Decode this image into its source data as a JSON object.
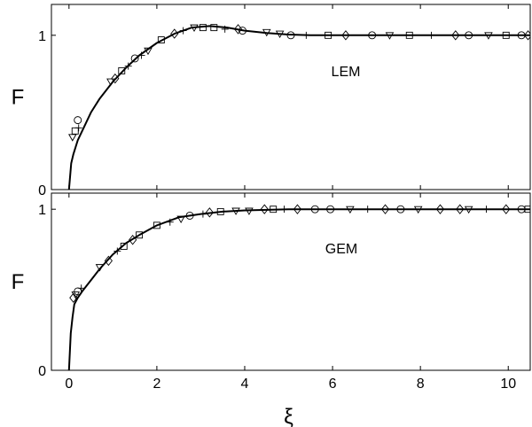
{
  "chart_data": [
    {
      "type": "scatter",
      "panel_label": "LEM",
      "ylabel": "F",
      "xlim": [
        -0.4,
        10.5
      ],
      "ylim": [
        0,
        1.2
      ],
      "y_ticks": [
        0,
        1
      ],
      "y_tick_labels": [
        "0",
        "1"
      ],
      "x_ticks": [
        0,
        2,
        4,
        6,
        8,
        10
      ],
      "grid": false,
      "curve": {
        "x": [
          0,
          0.05,
          0.1,
          0.2,
          0.3,
          0.5,
          0.7,
          1.0,
          1.3,
          1.6,
          2.0,
          2.4,
          2.8,
          3.2,
          3.6,
          4.0,
          4.5,
          5.0,
          5.5,
          6.0,
          7.0,
          8.0,
          9.0,
          10.0,
          10.5
        ],
        "y": [
          0,
          0.17,
          0.23,
          0.32,
          0.38,
          0.5,
          0.59,
          0.7,
          0.79,
          0.87,
          0.95,
          1.01,
          1.05,
          1.06,
          1.05,
          1.03,
          1.015,
          1.005,
          1.0,
          1.0,
          1.0,
          1.0,
          1.0,
          1.0,
          1.0
        ]
      },
      "markers": [
        {
          "x": 0.08,
          "y": 0.34,
          "shape": "triangle-down"
        },
        {
          "x": 0.14,
          "y": 0.38,
          "shape": "square"
        },
        {
          "x": 0.2,
          "y": 0.45,
          "shape": "circle"
        },
        {
          "x": 0.22,
          "y": 0.4,
          "shape": "plus"
        },
        {
          "x": 0.95,
          "y": 0.7,
          "shape": "triangle-down"
        },
        {
          "x": 1.05,
          "y": 0.72,
          "shape": "diamond"
        },
        {
          "x": 1.2,
          "y": 0.77,
          "shape": "square"
        },
        {
          "x": 1.35,
          "y": 0.8,
          "shape": "plus"
        },
        {
          "x": 1.5,
          "y": 0.85,
          "shape": "circle"
        },
        {
          "x": 1.65,
          "y": 0.87,
          "shape": "plus"
        },
        {
          "x": 1.8,
          "y": 0.9,
          "shape": "triangle-down"
        },
        {
          "x": 2.1,
          "y": 0.97,
          "shape": "square"
        },
        {
          "x": 2.4,
          "y": 1.01,
          "shape": "diamond"
        },
        {
          "x": 2.6,
          "y": 1.03,
          "shape": "plus"
        },
        {
          "x": 2.85,
          "y": 1.05,
          "shape": "triangle-down"
        },
        {
          "x": 3.05,
          "y": 1.05,
          "shape": "square"
        },
        {
          "x": 3.3,
          "y": 1.05,
          "shape": "square"
        },
        {
          "x": 3.55,
          "y": 1.04,
          "shape": "plus"
        },
        {
          "x": 3.85,
          "y": 1.04,
          "shape": "diamond"
        },
        {
          "x": 3.95,
          "y": 1.03,
          "shape": "circle"
        },
        {
          "x": 4.5,
          "y": 1.02,
          "shape": "triangle-down"
        },
        {
          "x": 4.8,
          "y": 1.01,
          "shape": "triangle-down"
        },
        {
          "x": 5.05,
          "y": 1.0,
          "shape": "circle"
        },
        {
          "x": 5.4,
          "y": 1.0,
          "shape": "plus"
        },
        {
          "x": 5.9,
          "y": 1.0,
          "shape": "square"
        },
        {
          "x": 6.3,
          "y": 1.0,
          "shape": "diamond"
        },
        {
          "x": 6.9,
          "y": 1.0,
          "shape": "circle"
        },
        {
          "x": 7.3,
          "y": 1.0,
          "shape": "triangle-down"
        },
        {
          "x": 7.75,
          "y": 1.0,
          "shape": "square"
        },
        {
          "x": 8.25,
          "y": 1.0,
          "shape": "plus"
        },
        {
          "x": 8.8,
          "y": 1.0,
          "shape": "diamond"
        },
        {
          "x": 9.1,
          "y": 1.0,
          "shape": "circle"
        },
        {
          "x": 9.55,
          "y": 1.0,
          "shape": "triangle-down"
        },
        {
          "x": 9.95,
          "y": 1.0,
          "shape": "square"
        },
        {
          "x": 10.3,
          "y": 1.0,
          "shape": "circle"
        },
        {
          "x": 10.45,
          "y": 1.0,
          "shape": "diamond"
        }
      ]
    },
    {
      "type": "scatter",
      "panel_label": "GEM",
      "xlabel": "ξ",
      "ylabel": "F",
      "xlim": [
        -0.4,
        10.5
      ],
      "ylim": [
        0,
        1.1
      ],
      "y_ticks": [
        0,
        1
      ],
      "y_tick_labels": [
        "0",
        "1"
      ],
      "x_ticks": [
        0,
        2,
        4,
        6,
        8,
        10
      ],
      "x_tick_labels": [
        "0",
        "2",
        "4",
        "6",
        "8",
        "10"
      ],
      "grid": false,
      "curve": {
        "x": [
          0,
          0.04,
          0.08,
          0.12,
          0.2,
          0.3,
          0.5,
          0.7,
          1.0,
          1.3,
          1.6,
          2.0,
          2.5,
          3.0,
          3.5,
          4.0,
          5.0,
          6.0,
          7.0,
          8.0,
          9.0,
          10.0,
          10.5
        ],
        "y": [
          0,
          0.23,
          0.33,
          0.41,
          0.45,
          0.49,
          0.56,
          0.63,
          0.72,
          0.79,
          0.84,
          0.9,
          0.95,
          0.97,
          0.985,
          0.993,
          1.0,
          1.0,
          1.0,
          1.0,
          1.0,
          1.0,
          1.0
        ]
      },
      "markers": [
        {
          "x": 0.1,
          "y": 0.45,
          "shape": "diamond"
        },
        {
          "x": 0.15,
          "y": 0.47,
          "shape": "triangle-down"
        },
        {
          "x": 0.2,
          "y": 0.49,
          "shape": "circle"
        },
        {
          "x": 0.28,
          "y": 0.51,
          "shape": "plus"
        },
        {
          "x": 0.7,
          "y": 0.64,
          "shape": "triangle-down"
        },
        {
          "x": 0.9,
          "y": 0.68,
          "shape": "diamond"
        },
        {
          "x": 1.1,
          "y": 0.74,
          "shape": "plus"
        },
        {
          "x": 1.25,
          "y": 0.77,
          "shape": "square"
        },
        {
          "x": 1.45,
          "y": 0.81,
          "shape": "diamond"
        },
        {
          "x": 1.6,
          "y": 0.84,
          "shape": "square"
        },
        {
          "x": 2.0,
          "y": 0.9,
          "shape": "square"
        },
        {
          "x": 2.3,
          "y": 0.92,
          "shape": "plus"
        },
        {
          "x": 2.55,
          "y": 0.94,
          "shape": "triangle-down"
        },
        {
          "x": 2.75,
          "y": 0.96,
          "shape": "circle"
        },
        {
          "x": 3.05,
          "y": 0.97,
          "shape": "plus"
        },
        {
          "x": 3.2,
          "y": 0.98,
          "shape": "diamond"
        },
        {
          "x": 3.45,
          "y": 0.985,
          "shape": "square"
        },
        {
          "x": 3.8,
          "y": 0.99,
          "shape": "triangle-down"
        },
        {
          "x": 4.1,
          "y": 0.99,
          "shape": "triangle-down"
        },
        {
          "x": 4.45,
          "y": 1.0,
          "shape": "diamond"
        },
        {
          "x": 4.65,
          "y": 1.0,
          "shape": "square"
        },
        {
          "x": 4.9,
          "y": 1.0,
          "shape": "plus"
        },
        {
          "x": 5.2,
          "y": 1.0,
          "shape": "diamond"
        },
        {
          "x": 5.6,
          "y": 1.0,
          "shape": "circle"
        },
        {
          "x": 5.95,
          "y": 1.0,
          "shape": "circle"
        },
        {
          "x": 6.4,
          "y": 1.0,
          "shape": "triangle-down"
        },
        {
          "x": 6.8,
          "y": 1.0,
          "shape": "plus"
        },
        {
          "x": 7.2,
          "y": 1.0,
          "shape": "diamond"
        },
        {
          "x": 7.55,
          "y": 1.0,
          "shape": "circle"
        },
        {
          "x": 7.95,
          "y": 1.0,
          "shape": "triangle-down"
        },
        {
          "x": 8.45,
          "y": 1.0,
          "shape": "diamond"
        },
        {
          "x": 8.9,
          "y": 1.0,
          "shape": "diamond"
        },
        {
          "x": 9.1,
          "y": 1.0,
          "shape": "triangle-down"
        },
        {
          "x": 9.5,
          "y": 1.0,
          "shape": "plus"
        },
        {
          "x": 9.95,
          "y": 1.0,
          "shape": "diamond"
        },
        {
          "x": 10.3,
          "y": 1.0,
          "shape": "circle"
        },
        {
          "x": 10.45,
          "y": 1.0,
          "shape": "square"
        }
      ]
    }
  ]
}
